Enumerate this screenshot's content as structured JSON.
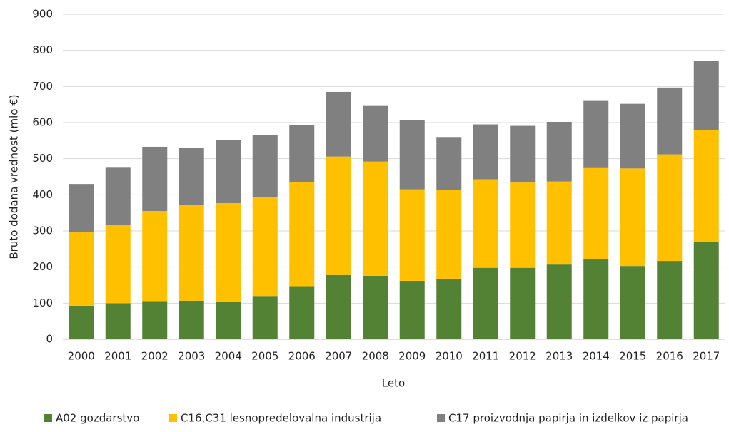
{
  "chart_data": {
    "type": "stacked-bar",
    "y_label": "Bruto dodana  vrednost (mio €)",
    "x_label": "Leto",
    "categories": [
      "2000",
      "2001",
      "2002",
      "2003",
      "2004",
      "2005",
      "2006",
      "2007",
      "2008",
      "2009",
      "2010",
      "2011",
      "2012",
      "2013",
      "2014",
      "2015",
      "2016",
      "2017"
    ],
    "series": [
      {
        "name": "A02 gozdarstvo",
        "color": "#548235",
        "values": [
          93,
          100,
          106,
          107,
          105,
          120,
          147,
          178,
          176,
          162,
          168,
          198,
          198,
          207,
          223,
          203,
          217,
          270
        ]
      },
      {
        "name": "C16,C31 lesnopredelovalna industrija",
        "color": "#ffc000",
        "values": [
          203,
          216,
          249,
          264,
          272,
          274,
          289,
          328,
          316,
          253,
          245,
          245,
          236,
          230,
          253,
          270,
          295,
          309
        ]
      },
      {
        "name": "C17 proizvodnja papirja in izdelkov iz papirja",
        "color": "#808080",
        "values": [
          134,
          161,
          178,
          159,
          175,
          171,
          158,
          179,
          156,
          191,
          147,
          152,
          157,
          165,
          186,
          179,
          185,
          192
        ]
      }
    ],
    "ylim": [
      0,
      900
    ],
    "yticks": [
      0,
      100,
      200,
      300,
      400,
      500,
      600,
      700,
      800,
      900
    ],
    "grid": true,
    "legend": "bottom"
  }
}
